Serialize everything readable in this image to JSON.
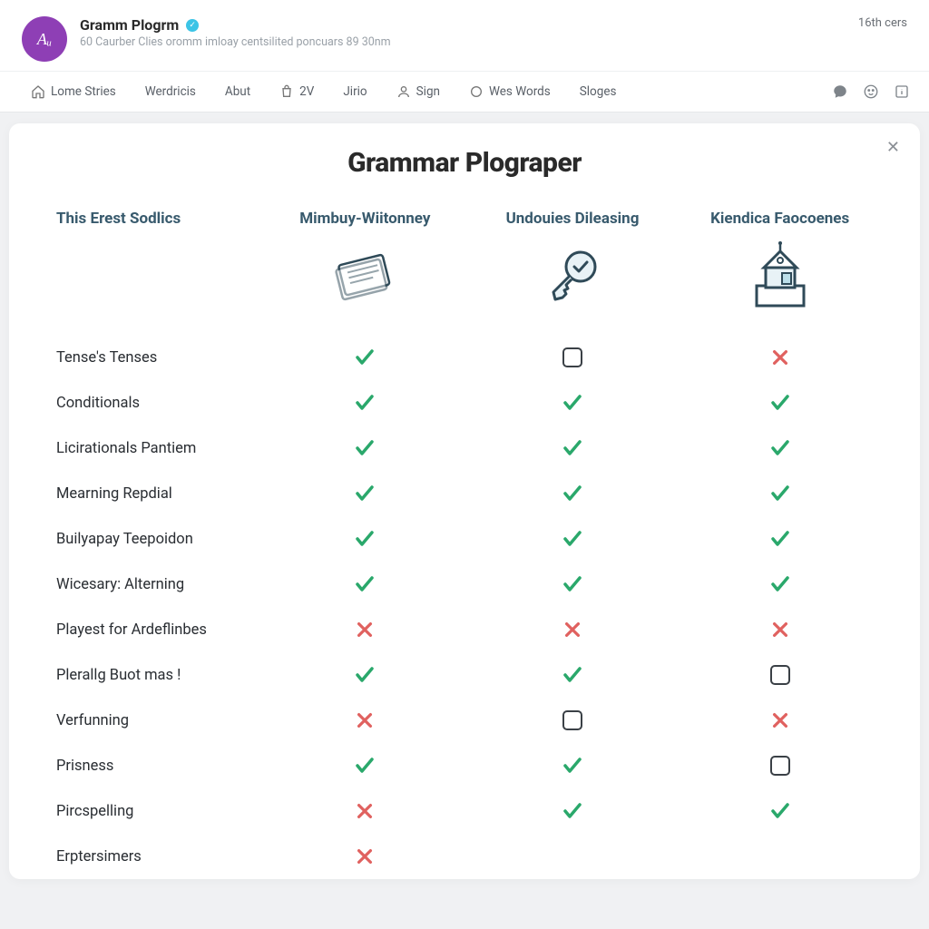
{
  "header": {
    "avatar_text": "Aᵤ",
    "title": "Gramm Plogrm",
    "subtitle": "60 Caurber Clies oromm imloay centsilited poncuars 89 30nm",
    "right_text": "16th cers"
  },
  "nav": {
    "items": [
      {
        "icon": "home",
        "label": "Lome Stries"
      },
      {
        "icon": null,
        "label": "Werdricis"
      },
      {
        "icon": null,
        "label": "Abut"
      },
      {
        "icon": "bag",
        "label": "2V"
      },
      {
        "icon": null,
        "label": "Jirio"
      },
      {
        "icon": "user",
        "label": "Sign"
      },
      {
        "icon": "circle",
        "label": "Wes Words"
      },
      {
        "icon": null,
        "label": "Sloges"
      }
    ]
  },
  "panel": {
    "title": "Grammar Plograper",
    "columns": [
      "This Erest Sodlics",
      "Mimbuy-Wiitonney",
      "Undouies Dileasing",
      "Kiendica Faocoenes"
    ],
    "features": [
      {
        "label": "Tense's Tenses",
        "cells": [
          "check",
          "box",
          "cross"
        ]
      },
      {
        "label": "Conditionals",
        "cells": [
          "check",
          "check",
          "check"
        ]
      },
      {
        "label": "Licirationals Pantiem",
        "cells": [
          "check",
          "check",
          "check"
        ]
      },
      {
        "label": "Mearning Repdial",
        "cells": [
          "check",
          "check",
          "check"
        ]
      },
      {
        "label": "Builyapay Teepoidon",
        "cells": [
          "check",
          "check",
          "check"
        ]
      },
      {
        "label": "Wicesary: Alterning",
        "cells": [
          "check",
          "check",
          "check"
        ]
      },
      {
        "label": "Playest for Ardeflinbes",
        "cells": [
          "cross",
          "cross",
          "cross"
        ]
      },
      {
        "label": "Plerallg Buot mas !",
        "cells": [
          "check",
          "check",
          "box"
        ]
      },
      {
        "label": "Verfunning",
        "cells": [
          "cross",
          "box",
          "cross"
        ]
      },
      {
        "label": "Prisness",
        "cells": [
          "check",
          "check",
          "box"
        ]
      },
      {
        "label": "Pircspelling",
        "cells": [
          "cross",
          "check",
          "check"
        ]
      },
      {
        "label": "Erptersimers",
        "cells": [
          "cross",
          "",
          ""
        ]
      }
    ]
  },
  "colors": {
    "check": "#2aa86b",
    "cross": "#e0615f",
    "box": "#3a4046",
    "header_text": "#385a6d",
    "avatar_bg": "#8e3fb5"
  }
}
